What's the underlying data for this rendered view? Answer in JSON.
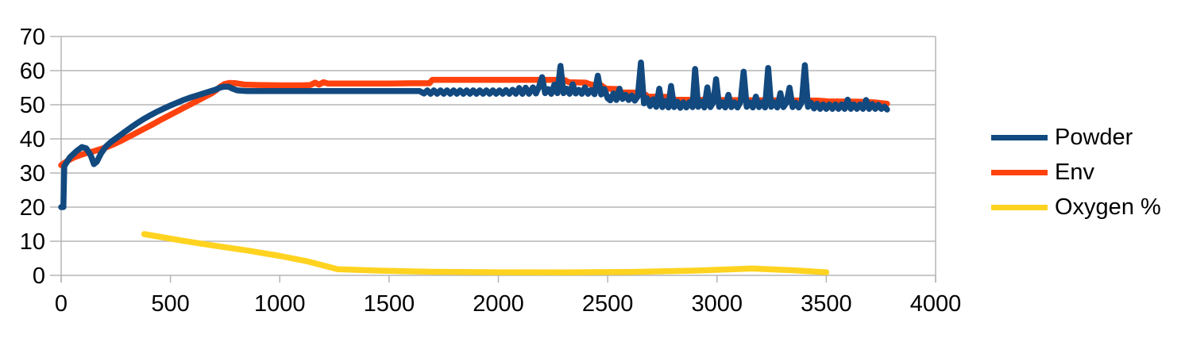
{
  "chart_data": {
    "type": "line",
    "title": "",
    "xlabel": "",
    "ylabel": "",
    "grid": "horizontal",
    "legend_position": "right",
    "background": "#ffffff",
    "grid_color": "#b5b5b5",
    "text_color": "#000000",
    "x_axis": {
      "min": 0,
      "max": 4000,
      "ticks": [
        0,
        500,
        1000,
        1500,
        2000,
        2500,
        3000,
        3500,
        4000
      ]
    },
    "y_axis": {
      "min": 0,
      "max": 70,
      "ticks": [
        0,
        10,
        20,
        30,
        40,
        50,
        60,
        70
      ]
    },
    "series": [
      {
        "name": "Powder",
        "color": "#12497f",
        "points": [
          [
            0,
            20
          ],
          [
            10,
            20
          ],
          [
            14,
            32
          ],
          [
            40,
            34.6
          ],
          [
            70,
            36.4
          ],
          [
            95,
            37.6
          ],
          [
            115,
            37.2
          ],
          [
            135,
            35.2
          ],
          [
            150,
            32.6
          ],
          [
            163,
            33.3
          ],
          [
            182,
            35.7
          ],
          [
            205,
            37.8
          ],
          [
            230,
            39.2
          ],
          [
            260,
            40.6
          ],
          [
            290,
            42
          ],
          [
            320,
            43.4
          ],
          [
            350,
            44.7
          ],
          [
            380,
            45.9
          ],
          [
            410,
            47
          ],
          [
            440,
            48
          ],
          [
            470,
            48.9
          ],
          [
            500,
            49.8
          ],
          [
            530,
            50.6
          ],
          [
            560,
            51.4
          ],
          [
            590,
            52.1
          ],
          [
            620,
            52.7
          ],
          [
            650,
            53.3
          ],
          [
            680,
            53.9
          ],
          [
            705,
            54.4
          ],
          [
            725,
            55
          ],
          [
            745,
            55.3
          ],
          [
            765,
            55.3
          ],
          [
            785,
            54.7
          ],
          [
            805,
            54.2
          ],
          [
            850,
            54
          ],
          [
            950,
            54
          ],
          [
            1050,
            54
          ],
          [
            1150,
            54
          ],
          [
            1250,
            54
          ],
          [
            1350,
            54
          ],
          [
            1450,
            54
          ],
          [
            1550,
            54
          ],
          [
            1640,
            54
          ],
          [
            1660,
            53.3
          ],
          [
            1675,
            54.2
          ],
          [
            1690,
            53.2
          ],
          [
            1705,
            54.2
          ],
          [
            1720,
            53.2
          ],
          [
            1735,
            54.2
          ],
          [
            1750,
            53.2
          ],
          [
            1765,
            54.2
          ],
          [
            1780,
            53.2
          ],
          [
            1795,
            54.2
          ],
          [
            1810,
            53.2
          ],
          [
            1825,
            54.2
          ],
          [
            1840,
            53.2
          ],
          [
            1855,
            54.2
          ],
          [
            1870,
            53.2
          ],
          [
            1885,
            54.2
          ],
          [
            1900,
            53.2
          ],
          [
            1915,
            54.2
          ],
          [
            1930,
            53.2
          ],
          [
            1945,
            54.2
          ],
          [
            1960,
            53.2
          ],
          [
            1975,
            54.2
          ],
          [
            1990,
            53.2
          ],
          [
            2005,
            54.2
          ],
          [
            2020,
            53.2
          ],
          [
            2035,
            54.3
          ],
          [
            2050,
            53.2
          ],
          [
            2065,
            54.4
          ],
          [
            2080,
            53.2
          ],
          [
            2095,
            54.9
          ],
          [
            2110,
            53.2
          ],
          [
            2125,
            55
          ],
          [
            2140,
            53.2
          ],
          [
            2158,
            55.1
          ],
          [
            2172,
            53.3
          ],
          [
            2186,
            55.3
          ],
          [
            2200,
            58.1
          ],
          [
            2214,
            53.4
          ],
          [
            2228,
            54.6
          ],
          [
            2242,
            53.2
          ],
          [
            2256,
            55.9
          ],
          [
            2270,
            53.4
          ],
          [
            2284,
            61.4
          ],
          [
            2298,
            53.4
          ],
          [
            2312,
            54.7
          ],
          [
            2326,
            53.2
          ],
          [
            2340,
            56
          ],
          [
            2354,
            53.3
          ],
          [
            2368,
            54.4
          ],
          [
            2382,
            53.2
          ],
          [
            2396,
            55.1
          ],
          [
            2410,
            53.2
          ],
          [
            2424,
            54.3
          ],
          [
            2440,
            53.1
          ],
          [
            2455,
            58.5
          ],
          [
            2470,
            53
          ],
          [
            2485,
            54.6
          ],
          [
            2500,
            51.9
          ],
          [
            2512,
            51.3
          ],
          [
            2526,
            53.3
          ],
          [
            2540,
            51.4
          ],
          [
            2554,
            54.7
          ],
          [
            2568,
            51.7
          ],
          [
            2582,
            52.9
          ],
          [
            2596,
            51.4
          ],
          [
            2610,
            52.7
          ],
          [
            2624,
            51.2
          ],
          [
            2638,
            52.5
          ],
          [
            2652,
            62.4
          ],
          [
            2666,
            50.4
          ],
          [
            2680,
            51.9
          ],
          [
            2694,
            49.6
          ],
          [
            2708,
            51.6
          ],
          [
            2722,
            49.4
          ],
          [
            2736,
            54.7
          ],
          [
            2750,
            49.3
          ],
          [
            2764,
            51.1
          ],
          [
            2778,
            49.2
          ],
          [
            2790,
            55.5
          ],
          [
            2804,
            49.3
          ],
          [
            2818,
            50.9
          ],
          [
            2832,
            49.1
          ],
          [
            2846,
            50.7
          ],
          [
            2860,
            49.2
          ],
          [
            2874,
            50.8
          ],
          [
            2888,
            49.3
          ],
          [
            2900,
            60.5
          ],
          [
            2914,
            49.4
          ],
          [
            2928,
            50.9
          ],
          [
            2942,
            49.2
          ],
          [
            2956,
            55.1
          ],
          [
            2970,
            49.3
          ],
          [
            2984,
            50.8
          ],
          [
            2996,
            57.5
          ],
          [
            3010,
            49.4
          ],
          [
            3024,
            50.7
          ],
          [
            3038,
            49.2
          ],
          [
            3052,
            52.9
          ],
          [
            3066,
            49.3
          ],
          [
            3080,
            50.7
          ],
          [
            3094,
            49.2
          ],
          [
            3108,
            50.9
          ],
          [
            3122,
            59.7
          ],
          [
            3136,
            49.4
          ],
          [
            3150,
            50.7
          ],
          [
            3164,
            49.2
          ],
          [
            3178,
            52.4
          ],
          [
            3192,
            49.3
          ],
          [
            3206,
            50.7
          ],
          [
            3220,
            49.2
          ],
          [
            3234,
            60.8
          ],
          [
            3248,
            49.4
          ],
          [
            3262,
            50.7
          ],
          [
            3276,
            49.2
          ],
          [
            3290,
            53.4
          ],
          [
            3304,
            49.3
          ],
          [
            3318,
            50.6
          ],
          [
            3332,
            55
          ],
          [
            3346,
            49.3
          ],
          [
            3360,
            50.6
          ],
          [
            3374,
            49.2
          ],
          [
            3388,
            50.7
          ],
          [
            3402,
            61.6
          ],
          [
            3416,
            49.4
          ],
          [
            3430,
            50.6
          ],
          [
            3444,
            48.9
          ],
          [
            3458,
            50.3
          ],
          [
            3472,
            48.8
          ],
          [
            3486,
            50.1
          ],
          [
            3500,
            48.8
          ],
          [
            3514,
            50.1
          ],
          [
            3528,
            48.8
          ],
          [
            3542,
            50.1
          ],
          [
            3556,
            48.8
          ],
          [
            3570,
            50.1
          ],
          [
            3584,
            48.8
          ],
          [
            3598,
            51.5
          ],
          [
            3612,
            48.8
          ],
          [
            3626,
            50.1
          ],
          [
            3640,
            48.8
          ],
          [
            3654,
            50.1
          ],
          [
            3668,
            48.8
          ],
          [
            3682,
            51.4
          ],
          [
            3696,
            48.8
          ],
          [
            3710,
            50.2
          ],
          [
            3724,
            48.8
          ],
          [
            3738,
            50
          ],
          [
            3752,
            48.8
          ],
          [
            3766,
            49.5
          ],
          [
            3778,
            48.6
          ]
        ]
      },
      {
        "name": "Env",
        "color": "#ff420e",
        "points": [
          [
            0,
            32.3
          ],
          [
            30,
            33.6
          ],
          [
            60,
            34.6
          ],
          [
            90,
            35.3
          ],
          [
            120,
            35.9
          ],
          [
            150,
            36.4
          ],
          [
            180,
            37
          ],
          [
            210,
            37.6
          ],
          [
            240,
            38.4
          ],
          [
            270,
            39.3
          ],
          [
            300,
            40.3
          ],
          [
            330,
            41.3
          ],
          [
            360,
            42.3
          ],
          [
            390,
            43.3
          ],
          [
            420,
            44.3
          ],
          [
            450,
            45.4
          ],
          [
            480,
            46.4
          ],
          [
            510,
            47.4
          ],
          [
            540,
            48.4
          ],
          [
            570,
            49.4
          ],
          [
            600,
            50.4
          ],
          [
            630,
            51.4
          ],
          [
            660,
            52.4
          ],
          [
            690,
            53.4
          ],
          [
            710,
            54.3
          ],
          [
            730,
            55.4
          ],
          [
            748,
            56.1
          ],
          [
            770,
            56.4
          ],
          [
            800,
            56.3
          ],
          [
            840,
            55.9
          ],
          [
            900,
            55.8
          ],
          [
            1000,
            55.7
          ],
          [
            1100,
            55.7
          ],
          [
            1140,
            55.8
          ],
          [
            1162,
            56.5
          ],
          [
            1180,
            55.9
          ],
          [
            1200,
            56.6
          ],
          [
            1222,
            56.2
          ],
          [
            1300,
            56.2
          ],
          [
            1400,
            56.2
          ],
          [
            1500,
            56.2
          ],
          [
            1600,
            56.3
          ],
          [
            1685,
            56.3
          ],
          [
            1698,
            57.3
          ],
          [
            1800,
            57.3
          ],
          [
            1950,
            57.3
          ],
          [
            2100,
            57.3
          ],
          [
            2250,
            57.3
          ],
          [
            2305,
            57.2
          ],
          [
            2322,
            56.6
          ],
          [
            2400,
            56.5
          ],
          [
            2425,
            55.9
          ],
          [
            2468,
            55.8
          ],
          [
            2492,
            54.7
          ],
          [
            2545,
            54.6
          ],
          [
            2565,
            53.6
          ],
          [
            2660,
            53.5
          ],
          [
            2685,
            52.4
          ],
          [
            2785,
            52.3
          ],
          [
            2808,
            51.5
          ],
          [
            3000,
            51.4
          ],
          [
            3200,
            51.3
          ],
          [
            3460,
            51.2
          ],
          [
            3510,
            51
          ],
          [
            3650,
            50.9
          ],
          [
            3720,
            50.7
          ],
          [
            3778,
            50.3
          ]
        ]
      },
      {
        "name": "Oxygen %",
        "color": "#ffd320",
        "points": [
          [
            380,
            12.1
          ],
          [
            550,
            10.2
          ],
          [
            700,
            8.7
          ],
          [
            850,
            7.3
          ],
          [
            1000,
            5.7
          ],
          [
            1120,
            4.2
          ],
          [
            1265,
            1.8
          ],
          [
            1450,
            1.4
          ],
          [
            1700,
            1.05
          ],
          [
            2000,
            0.9
          ],
          [
            2300,
            0.85
          ],
          [
            2600,
            1
          ],
          [
            2900,
            1.4
          ],
          [
            3160,
            2
          ],
          [
            3350,
            1.5
          ],
          [
            3500,
            0.9
          ]
        ]
      }
    ]
  }
}
